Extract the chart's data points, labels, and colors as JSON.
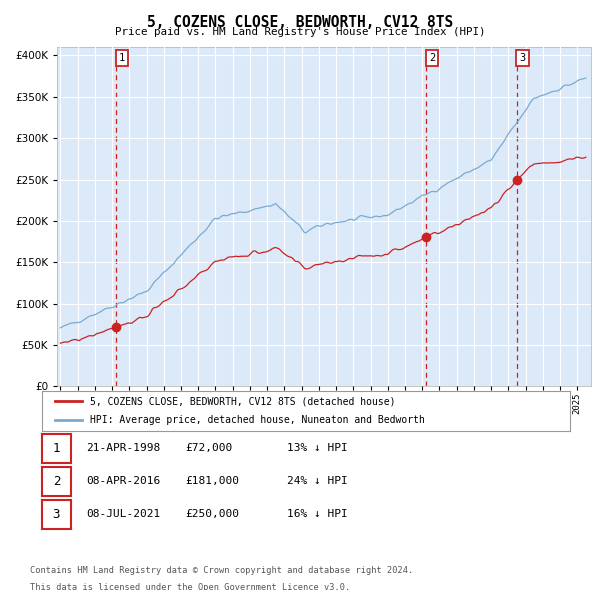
{
  "title": "5, COZENS CLOSE, BEDWORTH, CV12 8TS",
  "subtitle": "Price paid vs. HM Land Registry's House Price Index (HPI)",
  "legend_line1": "5, COZENS CLOSE, BEDWORTH, CV12 8TS (detached house)",
  "legend_line2": "HPI: Average price, detached house, Nuneaton and Bedworth",
  "sale1_date": "21-APR-1998",
  "sale1_price": 72000,
  "sale1_label": "13% ↓ HPI",
  "sale2_date": "08-APR-2016",
  "sale2_price": 181000,
  "sale2_label": "24% ↓ HPI",
  "sale3_date": "08-JUL-2021",
  "sale3_price": 250000,
  "sale3_label": "16% ↓ HPI",
  "footer1": "Contains HM Land Registry data © Crown copyright and database right 2024.",
  "footer2": "This data is licensed under the Open Government Licence v3.0.",
  "hpi_color": "#7aaad0",
  "price_color": "#cc2222",
  "fig_bg_color": "#ffffff",
  "plot_bg_color": "#dce9f8",
  "grid_color": "#ffffff",
  "dashed_line_color": "#cc2222",
  "ylim": [
    0,
    410000
  ],
  "yticks": [
    0,
    50000,
    100000,
    150000,
    200000,
    250000,
    300000,
    350000,
    400000
  ],
  "start_year": 1995,
  "end_year": 2025,
  "sale1_year": 1998,
  "sale1_month": 4,
  "sale2_year": 2016,
  "sale2_month": 4,
  "sale3_year": 2021,
  "sale3_month": 7
}
